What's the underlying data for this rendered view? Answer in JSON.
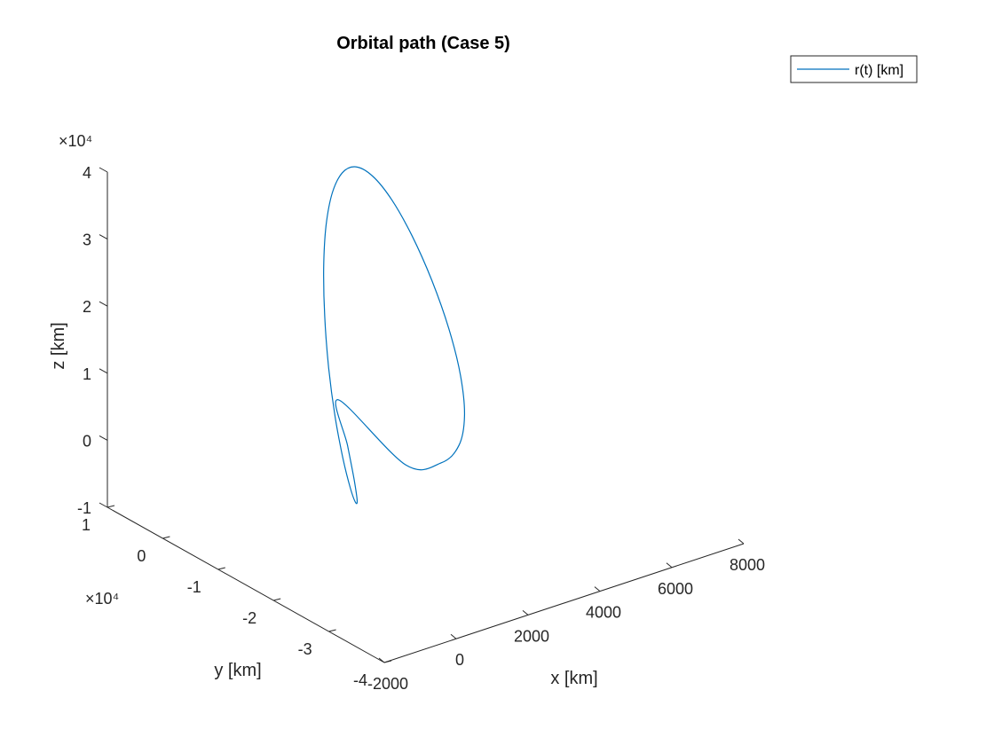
{
  "chart_data": {
    "type": "line",
    "title": "Orbital path (Case 5)",
    "xlabel": "x [km]",
    "ylabel": "y [km]",
    "zlabel": "z [km]",
    "xlim": [
      -2000,
      8000
    ],
    "ylim": [
      -40000,
      10000
    ],
    "zlim": [
      -10000,
      40000
    ],
    "x_ticks": [
      -2000,
      0,
      2000,
      4000,
      6000,
      8000
    ],
    "x_tick_labels": [
      "-2000",
      "0",
      "2000",
      "4000",
      "6000",
      "8000"
    ],
    "y_ticks": [
      -40000,
      -30000,
      -20000,
      -10000,
      0,
      10000
    ],
    "y_tick_labels": [
      "-4",
      "-3",
      "-2",
      "-1",
      "0",
      "1"
    ],
    "z_ticks": [
      -10000,
      0,
      10000,
      20000,
      30000,
      40000
    ],
    "z_tick_labels": [
      "-1",
      "0",
      "1",
      "2",
      "3",
      "4"
    ],
    "y_exponent_label": "×10⁴",
    "z_exponent_label": "×10⁴",
    "legend_position": "top-right",
    "grid": false,
    "series": [
      {
        "name": "r(t) [km]",
        "color": "#0072BD",
        "shape": "closed elliptical orbit",
        "x": [
          3071,
          3776,
          4406,
          5003,
          5543,
          5970,
          6240,
          6328,
          6222,
          5925,
          5461,
          4866,
          4184,
          3469,
          2775,
          2149,
          1633,
          1263,
          1053,
          999,
          1095,
          1325,
          1668,
          2101,
          2601,
          3071
        ],
        "y": [
          -10983,
          -12796,
          -11901,
          -9031,
          -4810,
          65,
          4896,
          9055,
          12038,
          13561,
          13568,
          12143,
          9525,
          6003,
          1933,
          -2313,
          -6375,
          -9946,
          -12724,
          -14411,
          -14735,
          -13516,
          -10769,
          -6755,
          -1905,
          -10983
        ],
        "z": [
          -2963,
          -3049,
          -1986,
          74,
          3126,
          7087,
          11608,
          16197,
          20366,
          23713,
          25902,
          26729,
          26156,
          24215,
          21019,
          16797,
          11934,
          6938,
          2393,
          -1168,
          -3331,
          -3911,
          -2860,
          -288,
          3380,
          -2963
        ]
      }
    ]
  }
}
